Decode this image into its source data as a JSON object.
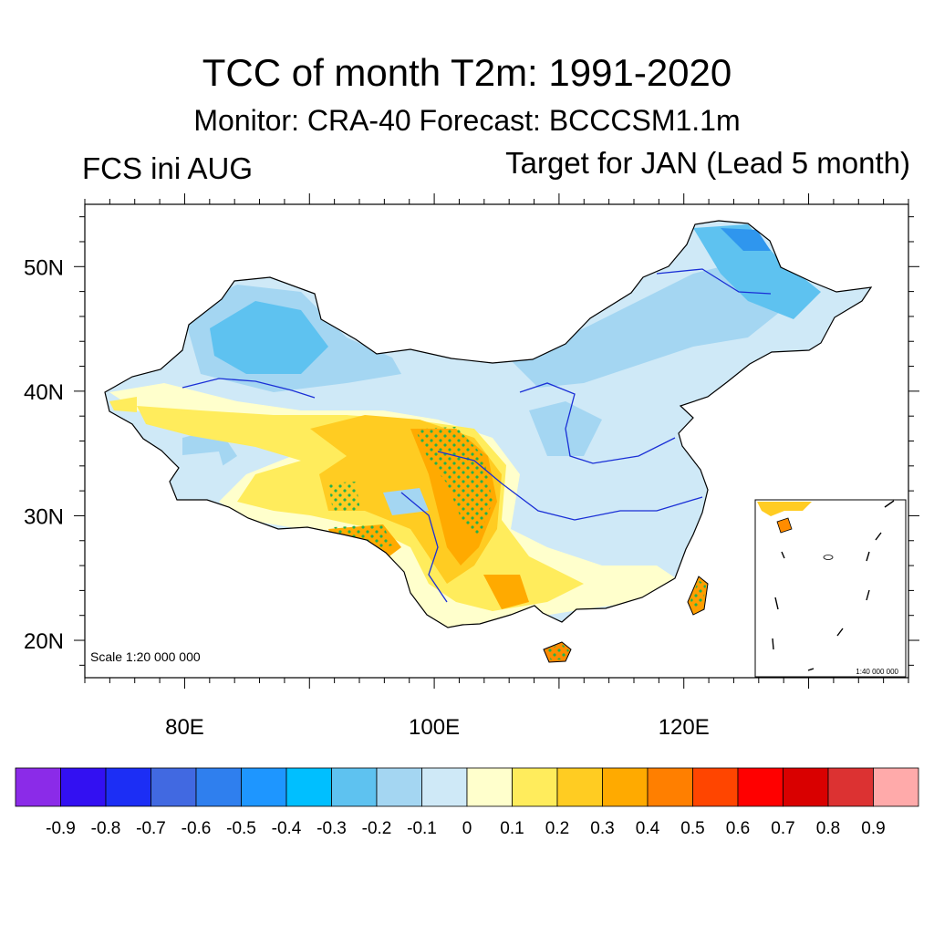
{
  "title": "TCC of month T2m: 1991-2020",
  "subtitle": "Monitor: CRA-40   Forecast: BCCCSM1.1m",
  "left_label": "FCS ini AUG",
  "right_label": "Target for JAN (Lead 5 month)",
  "scale_main": "Scale 1:20 000 000",
  "scale_inset": "1:40 000 000",
  "lat_labels": [
    "50N",
    "40N",
    "30N",
    "20N"
  ],
  "lon_labels": [
    "80E",
    "100E",
    "120E"
  ],
  "map_extent": {
    "lon": [
      72,
      138
    ],
    "lat": [
      17,
      55
    ]
  },
  "colorbar": {
    "labels": [
      "-0.9",
      "-0.8",
      "-0.7",
      "-0.6",
      "-0.5",
      "-0.4",
      "-0.3",
      "-0.2",
      "-0.1",
      "0",
      "0.1",
      "0.2",
      "0.3",
      "0.4",
      "0.5",
      "0.6",
      "0.7",
      "0.8",
      "0.9"
    ],
    "colors": [
      "#8b2be8",
      "#3310f2",
      "#1c2ef5",
      "#4169e1",
      "#2f7fee",
      "#1e96ff",
      "#00bfff",
      "#5ec2f0",
      "#a4d6f2",
      "#cfe9f7",
      "#ffffcc",
      "#ffec5c",
      "#ffcc22",
      "#ffaa00",
      "#ff7f00",
      "#ff4500",
      "#ff0000",
      "#d90000",
      "#dc3232",
      "#ffaaaa"
    ]
  }
}
